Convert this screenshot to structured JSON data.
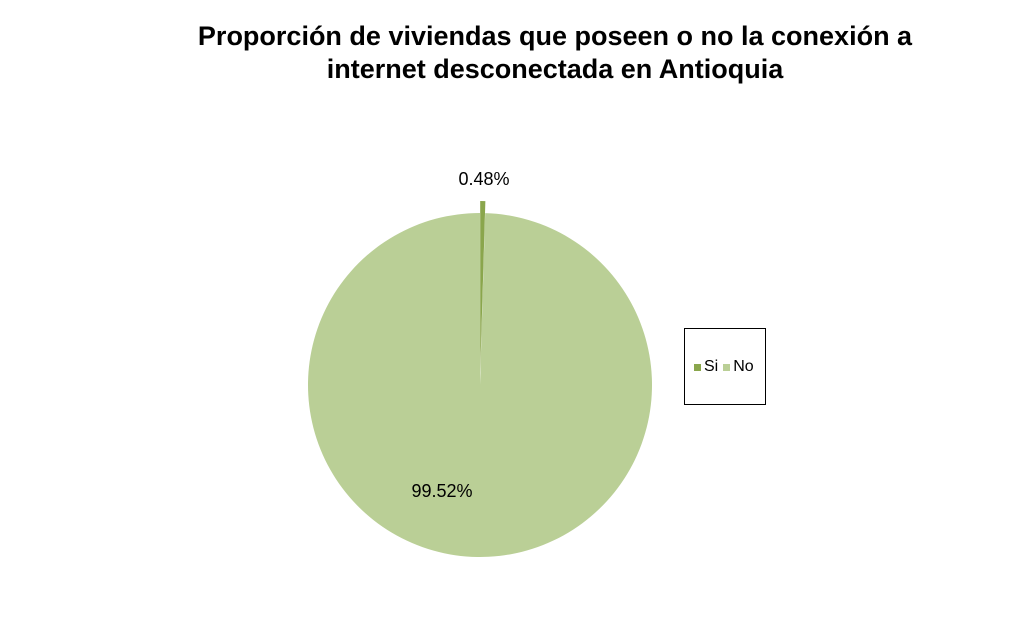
{
  "chart_data": {
    "type": "pie",
    "title_lines": [
      "Proporción de viviendas que poseen o no la conexión a",
      "internet desconectada en Antioquia"
    ],
    "categories": [
      "Si",
      "No"
    ],
    "values": [
      0.48,
      99.52
    ],
    "data_labels": [
      "0.48%",
      "99.52%"
    ],
    "colors": [
      "#8aa64c",
      "#bacf96"
    ],
    "legend_position": "right",
    "exploded_slice": "Si"
  }
}
